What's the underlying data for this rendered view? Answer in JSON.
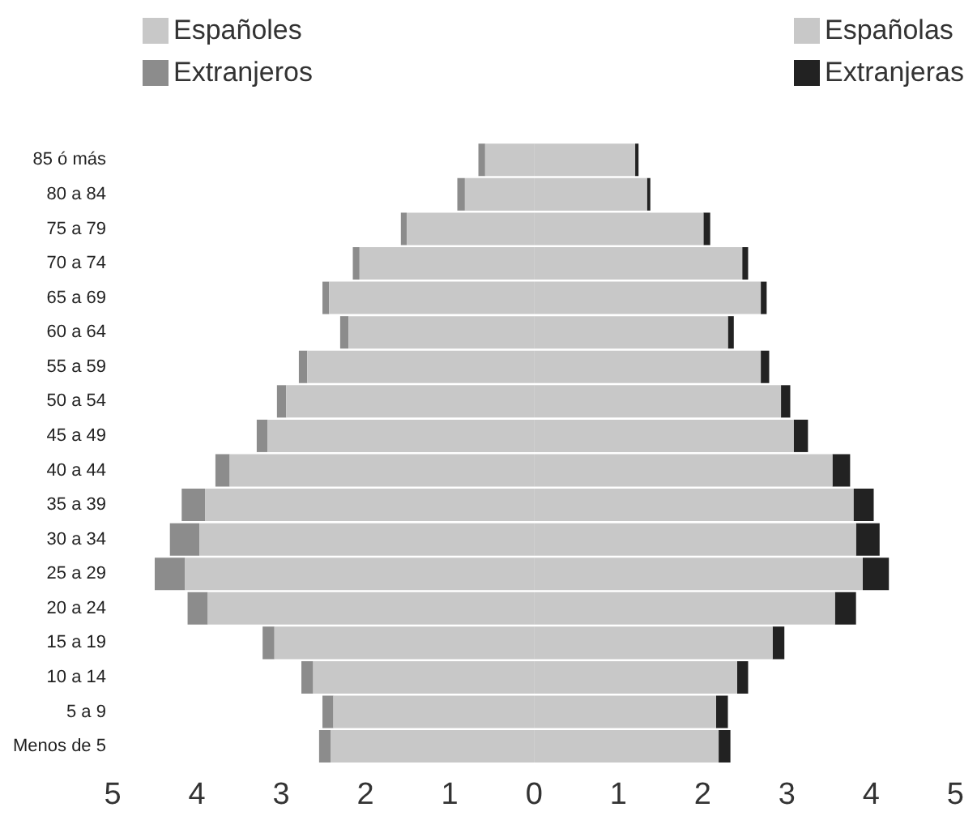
{
  "chart_data": {
    "type": "bar",
    "orientation": "horizontal",
    "stacked": true,
    "categories": [
      "85 ó más",
      "80 a 84",
      "75 a 79",
      "70 a 74",
      "65 a 69",
      "60 a 64",
      "55 a 59",
      "50 a 54",
      "45 a 49",
      "40 a 44",
      "35 a 39",
      "30 a 34",
      "25 a 29",
      "20 a 24",
      "15 a 19",
      "10 a 14",
      "5 a 9",
      "Menos de 5"
    ],
    "series": [
      {
        "name": "Españoles",
        "color": "#c8c8c8",
        "values": [
          -0.58,
          -0.82,
          -1.51,
          -2.07,
          -2.43,
          -2.2,
          -2.69,
          -2.94,
          -3.16,
          -3.61,
          -3.9,
          -3.97,
          -4.14,
          -3.87,
          -3.08,
          -2.62,
          -2.38,
          -2.41
        ]
      },
      {
        "name": "Extranjeros",
        "color": "#8c8c8c",
        "values": [
          -0.08,
          -0.09,
          -0.07,
          -0.08,
          -0.08,
          -0.1,
          -0.1,
          -0.11,
          -0.13,
          -0.17,
          -0.28,
          -0.35,
          -0.36,
          -0.24,
          -0.14,
          -0.14,
          -0.13,
          -0.14
        ]
      },
      {
        "name": "Españolas",
        "color": "#c8c8c8",
        "values": [
          1.2,
          1.34,
          2.01,
          2.47,
          2.69,
          2.3,
          2.69,
          2.93,
          3.08,
          3.54,
          3.79,
          3.82,
          3.9,
          3.57,
          2.83,
          2.41,
          2.16,
          2.19
        ]
      },
      {
        "name": "Extranjeras",
        "color": "#222222",
        "values": [
          0.04,
          0.04,
          0.08,
          0.07,
          0.07,
          0.07,
          0.1,
          0.11,
          0.17,
          0.21,
          0.24,
          0.28,
          0.31,
          0.25,
          0.14,
          0.13,
          0.14,
          0.14
        ]
      }
    ],
    "xlim": [
      -5,
      5
    ],
    "xticks": [
      {
        "value": -5,
        "label": "5"
      },
      {
        "value": -4,
        "label": "4"
      },
      {
        "value": -3,
        "label": "3"
      },
      {
        "value": -2,
        "label": "2"
      },
      {
        "value": -1,
        "label": "1"
      },
      0,
      1,
      2,
      3,
      4,
      5
    ],
    "grid": false,
    "legend": "top"
  }
}
